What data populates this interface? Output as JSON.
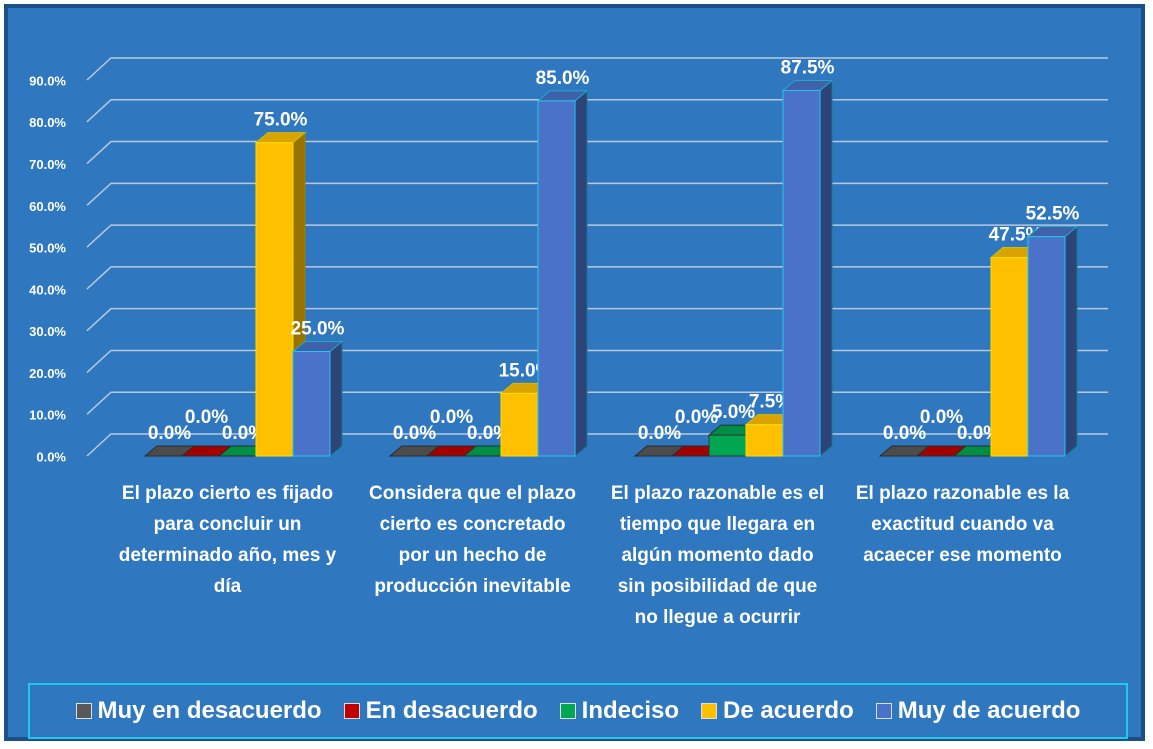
{
  "chart_data": {
    "type": "bar3d",
    "categories": [
      "El plazo cierto es fijado para concluir un determinado año, mes y día",
      "Considera que el plazo cierto es concretado por un hecho de producción inevitable",
      "El plazo razonable es el tiempo que llegara en algún momento dado sin posibilidad de que no llegue a ocurrir",
      "El plazo razonable es la exactitud cuando va acaecer ese momento"
    ],
    "series": [
      {
        "name": "Muy en desacuerdo",
        "color": "#595959",
        "values": [
          0,
          0,
          0,
          0
        ],
        "value_labels": [
          "0.0%",
          "0.0%",
          "0.0%",
          "0.0%"
        ]
      },
      {
        "name": "En desacuerdo",
        "color": "#c00000",
        "values": [
          0,
          0,
          0,
          0
        ],
        "value_labels": [
          "0.0%",
          "0.0%",
          "0.0%",
          "0.0%"
        ]
      },
      {
        "name": "Indeciso",
        "color": "#00a651",
        "values": [
          0,
          0,
          5,
          0
        ],
        "value_labels": [
          "0.0%",
          "0.0%",
          "5.0%",
          "0.0%"
        ]
      },
      {
        "name": "De acuerdo",
        "color": "#ffc000",
        "values": [
          75,
          15,
          7.5,
          47.5
        ],
        "value_labels": [
          "75.0%",
          "15.0%",
          "7.5%",
          "47.5%"
        ]
      },
      {
        "name": "Muy de acuerdo",
        "color": "#4a72c8",
        "values": [
          25,
          85,
          87.5,
          52.5
        ],
        "value_labels": [
          "25.0%",
          "85.0%",
          "87.5%",
          "52.5%"
        ]
      }
    ],
    "ylim": [
      0,
      90
    ],
    "yticks": [
      {
        "value": 0,
        "label": "0.0%"
      },
      {
        "value": 10,
        "label": "10.0%"
      },
      {
        "value": 20,
        "label": "20.0%"
      },
      {
        "value": 30,
        "label": "30.0%"
      },
      {
        "value": 40,
        "label": "40.0%"
      },
      {
        "value": 50,
        "label": "50.0%"
      },
      {
        "value": 60,
        "label": "60.0%"
      },
      {
        "value": 70,
        "label": "70.0%"
      },
      {
        "value": 80,
        "label": "80.0%"
      },
      {
        "value": 90,
        "label": "90.0%"
      }
    ],
    "grid": true
  }
}
